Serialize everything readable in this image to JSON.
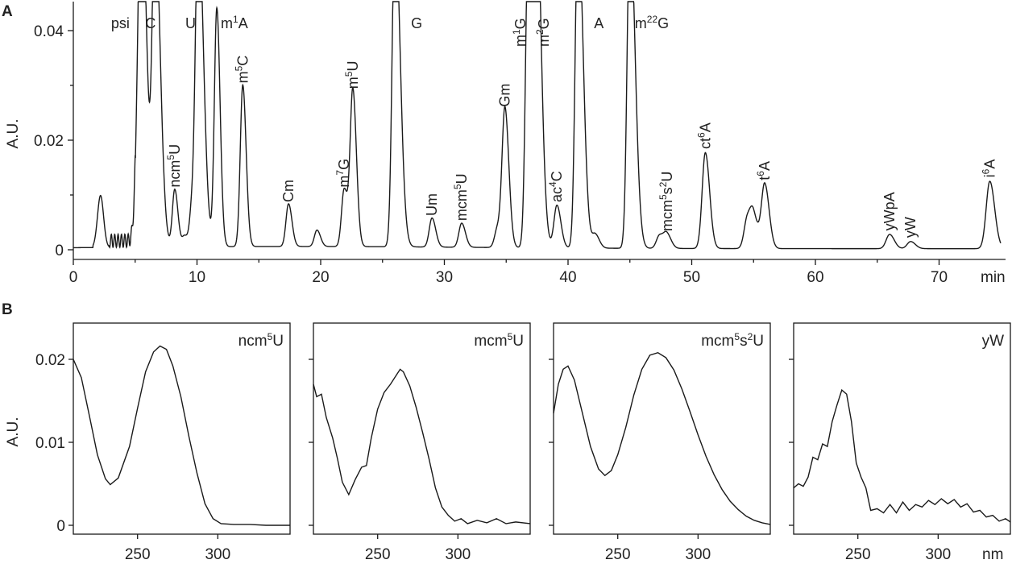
{
  "chart_data": [
    {
      "panel": "A",
      "type": "line",
      "xlabel": "min",
      "ylabel": "A.U.",
      "xlim": [
        0,
        75
      ],
      "ylim": [
        0,
        0.045
      ],
      "xticks": [
        0,
        10,
        20,
        30,
        40,
        50,
        60,
        70
      ],
      "yticks": [
        0,
        0.02,
        0.04
      ],
      "ytick_labels": [
        "0",
        "0.02",
        "0.04"
      ],
      "peaks": [
        {
          "label": "psi",
          "rt": 5.2,
          "height": 0.015,
          "off_scale": true
        },
        {
          "label": "C",
          "rt": 5.5,
          "height": 0.06,
          "off_scale": true
        },
        {
          "label": "C",
          "rt": 6.6,
          "height": 0.06,
          "off_scale": true
        },
        {
          "label": "ncm5U",
          "rt": 8.2,
          "height": 0.0105
        },
        {
          "label": "",
          "rt": 9.0,
          "height": 0.002
        },
        {
          "label": "",
          "rt": 9.6,
          "height": 0.007
        },
        {
          "label": "U",
          "rt": 10.1,
          "height": 0.06,
          "off_scale": true
        },
        {
          "label": "m1A",
          "rt": 11.6,
          "height": 0.0435
        },
        {
          "label": "m5C",
          "rt": 13.7,
          "height": 0.0295
        },
        {
          "label": "Cm",
          "rt": 17.4,
          "height": 0.0078
        },
        {
          "label": "",
          "rt": 19.7,
          "height": 0.003
        },
        {
          "label": "m7G",
          "rt": 21.9,
          "height": 0.0105
        },
        {
          "label": "m5U",
          "rt": 22.6,
          "height": 0.0285
        },
        {
          "label": "G",
          "rt": 26.0,
          "height": 0.06,
          "off_scale": true
        },
        {
          "label": "Um",
          "rt": 29.0,
          "height": 0.0053
        },
        {
          "label": "mcm5U",
          "rt": 31.4,
          "height": 0.0044
        },
        {
          "label": "",
          "rt": 34.3,
          "height": 0.0035
        },
        {
          "label": "Gm",
          "rt": 34.9,
          "height": 0.0252
        },
        {
          "label": "m1G",
          "rt": 36.8,
          "height": 0.06,
          "off_scale": true
        },
        {
          "label": "m2G",
          "rt": 37.4,
          "height": 0.06,
          "off_scale": true
        },
        {
          "label": "ac4C",
          "rt": 39.1,
          "height": 0.0078
        },
        {
          "label": "A",
          "rt": 40.8,
          "height": 0.06,
          "off_scale": true
        },
        {
          "label": "",
          "rt": 42.2,
          "height": 0.0025
        },
        {
          "label": "m22G",
          "rt": 45.0,
          "height": 0.06,
          "off_scale": true
        },
        {
          "label": "",
          "rt": 47.4,
          "height": 0.0024
        },
        {
          "label": "mcm5s2U",
          "rt": 48.0,
          "height": 0.0025
        },
        {
          "label": "ct6A",
          "rt": 51.1,
          "height": 0.0175
        },
        {
          "label": "",
          "rt": 54.5,
          "height": 0.0055
        },
        {
          "label": "",
          "rt": 55.0,
          "height": 0.0052
        },
        {
          "label": "t6A",
          "rt": 55.9,
          "height": 0.0118
        },
        {
          "label": "yWpA",
          "rt": 66.0,
          "height": 0.0026
        },
        {
          "label": "yW",
          "rt": 67.7,
          "height": 0.0013
        },
        {
          "label": "i6A",
          "rt": 74.1,
          "height": 0.0123
        }
      ]
    },
    {
      "panel": "B",
      "type": "line",
      "title": "ncm5U",
      "xlabel": "",
      "ylabel": "A.U.",
      "xlim": [
        210,
        345
      ],
      "ylim": [
        0,
        0.024
      ],
      "xticks": [
        250,
        300
      ],
      "yticks": [
        0,
        0.01,
        0.02
      ],
      "ytick_labels": [
        "0",
        "0.01",
        "0.02"
      ],
      "x": [
        210,
        215,
        220,
        225,
        230,
        233,
        238,
        245,
        250,
        255,
        260,
        264,
        268,
        272,
        277,
        282,
        287,
        292,
        297,
        302,
        310,
        320,
        330,
        345
      ],
      "y": [
        0.02,
        0.0178,
        0.0132,
        0.0085,
        0.0056,
        0.0049,
        0.0057,
        0.0095,
        0.0141,
        0.0185,
        0.0209,
        0.0216,
        0.0212,
        0.0192,
        0.0155,
        0.0107,
        0.0063,
        0.0026,
        0.0008,
        0.0002,
        0.0001,
        0.0001,
        0.0,
        0.0
      ]
    },
    {
      "panel": "B",
      "type": "line",
      "title": "mcm5U",
      "xlabel": "",
      "ylabel": "",
      "xlim": [
        210,
        345
      ],
      "ylim": [
        0,
        0.024
      ],
      "xticks": [
        250,
        300
      ],
      "yticks": [
        0,
        0.01,
        0.02
      ],
      "x": [
        210,
        212,
        215,
        218,
        222,
        225,
        228,
        232,
        236,
        240,
        243,
        246,
        250,
        254,
        258,
        262,
        264,
        266,
        270,
        274,
        278,
        282,
        286,
        290,
        294,
        298,
        302,
        306,
        312,
        318,
        324,
        330,
        336,
        345
      ],
      "y": [
        0.017,
        0.0155,
        0.0158,
        0.013,
        0.0105,
        0.008,
        0.0052,
        0.0037,
        0.0055,
        0.007,
        0.0072,
        0.0105,
        0.014,
        0.016,
        0.017,
        0.0182,
        0.0188,
        0.0185,
        0.0168,
        0.0142,
        0.0112,
        0.008,
        0.0045,
        0.0022,
        0.0012,
        0.0005,
        0.0008,
        0.0002,
        0.0006,
        0.0003,
        0.0008,
        0.0002,
        0.0004,
        0.0002
      ]
    },
    {
      "panel": "B",
      "type": "line",
      "title": "mcm5s2U",
      "xlabel": "",
      "ylabel": "",
      "xlim": [
        210,
        345
      ],
      "ylim": [
        0,
        0.024
      ],
      "xticks": [
        250,
        300
      ],
      "yticks": [
        0,
        0.01,
        0.02
      ],
      "x": [
        210,
        213,
        216,
        219,
        223,
        228,
        233,
        238,
        242,
        246,
        250,
        255,
        260,
        265,
        270,
        275,
        280,
        285,
        290,
        295,
        300,
        305,
        310,
        315,
        320,
        325,
        330,
        335,
        340,
        345
      ],
      "y": [
        0.0135,
        0.017,
        0.0188,
        0.0192,
        0.0175,
        0.0135,
        0.0095,
        0.0068,
        0.006,
        0.0066,
        0.0085,
        0.0118,
        0.0157,
        0.0188,
        0.0205,
        0.0208,
        0.0202,
        0.0187,
        0.0164,
        0.0137,
        0.0109,
        0.0083,
        0.0061,
        0.0043,
        0.0029,
        0.0019,
        0.0011,
        0.0006,
        0.0003,
        0.0001
      ]
    },
    {
      "panel": "B",
      "type": "line",
      "title": "yW",
      "xlabel": "nm",
      "ylabel": "",
      "xlim": [
        210,
        345
      ],
      "ylim": [
        0,
        0.024
      ],
      "xticks": [
        250,
        300
      ],
      "yticks": [
        0,
        0.01,
        0.02
      ],
      "x": [
        210,
        213,
        216,
        219,
        222,
        225,
        228,
        231,
        234,
        237,
        240,
        243,
        246,
        249,
        252,
        255,
        258,
        262,
        266,
        270,
        274,
        278,
        282,
        286,
        290,
        294,
        298,
        302,
        306,
        310,
        314,
        318,
        322,
        326,
        330,
        334,
        338,
        342,
        345
      ],
      "y": [
        0.0045,
        0.005,
        0.0047,
        0.0058,
        0.0082,
        0.0079,
        0.0098,
        0.0095,
        0.0125,
        0.0145,
        0.0163,
        0.0158,
        0.0125,
        0.0075,
        0.0058,
        0.0045,
        0.0018,
        0.002,
        0.0015,
        0.0025,
        0.0015,
        0.0028,
        0.0018,
        0.0025,
        0.0022,
        0.003,
        0.0025,
        0.0032,
        0.0026,
        0.0031,
        0.0022,
        0.0026,
        0.0016,
        0.0018,
        0.001,
        0.0012,
        0.0005,
        0.0008,
        0.0004
      ]
    }
  ]
}
